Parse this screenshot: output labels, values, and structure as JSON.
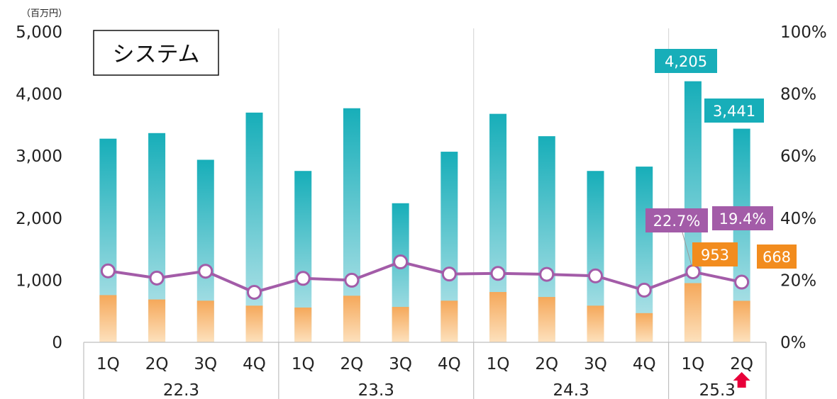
{
  "chart_data": {
    "type": "bar",
    "segment_title": "システム",
    "y_unit": "（百万円）",
    "y_ticks": [
      "0",
      "1,000",
      "2,000",
      "3,000",
      "4,000",
      "5,000"
    ],
    "y2_ticks": [
      "0%",
      "20%",
      "40%",
      "60%",
      "80%",
      "100%"
    ],
    "ylim": [
      0,
      5000
    ],
    "y2lim": [
      0,
      100
    ],
    "grid": false,
    "categories": [
      "1Q",
      "2Q",
      "3Q",
      "4Q",
      "1Q",
      "2Q",
      "3Q",
      "4Q",
      "1Q",
      "2Q",
      "3Q",
      "4Q",
      "1Q",
      "2Q"
    ],
    "groups": [
      {
        "label": "22.3",
        "count": 4
      },
      {
        "label": "23.3",
        "count": 4
      },
      {
        "label": "24.3",
        "count": 4
      },
      {
        "label": "25.3",
        "count": 2
      }
    ],
    "series": [
      {
        "kind": "bar",
        "axis": "left",
        "color": "#17aeb9",
        "values": [
          3280,
          3370,
          2940,
          3700,
          2760,
          3770,
          2240,
          3070,
          3680,
          3320,
          2760,
          2830,
          4205,
          3441
        ]
      },
      {
        "kind": "bar",
        "axis": "left",
        "color": "#f5a85a",
        "values": [
          760,
          690,
          670,
          590,
          560,
          750,
          570,
          670,
          810,
          730,
          590,
          470,
          953,
          668
        ]
      },
      {
        "kind": "line",
        "axis": "right",
        "color": "#a35ca8",
        "values": [
          23.0,
          20.7,
          22.9,
          16.1,
          20.6,
          20.0,
          25.9,
          22.0,
          22.2,
          21.9,
          21.4,
          16.8,
          22.7,
          19.4
        ]
      }
    ],
    "data_labels": {
      "teal": {
        "color": "#17aeb9",
        "items": [
          {
            "index": 12,
            "text": "4,205"
          },
          {
            "index": 13,
            "text": "3,441"
          }
        ]
      },
      "orange": {
        "color": "#f28c1e",
        "items": [
          {
            "index": 12,
            "text": "953"
          },
          {
            "index": 13,
            "text": "668"
          }
        ]
      },
      "purple": {
        "color": "#a35ca8",
        "items": [
          {
            "index": 12,
            "text": "22.7%"
          },
          {
            "index": 13,
            "text": "19.4%"
          }
        ]
      }
    },
    "highlight_arrow": {
      "index": 13,
      "color": "#e8003a"
    }
  }
}
